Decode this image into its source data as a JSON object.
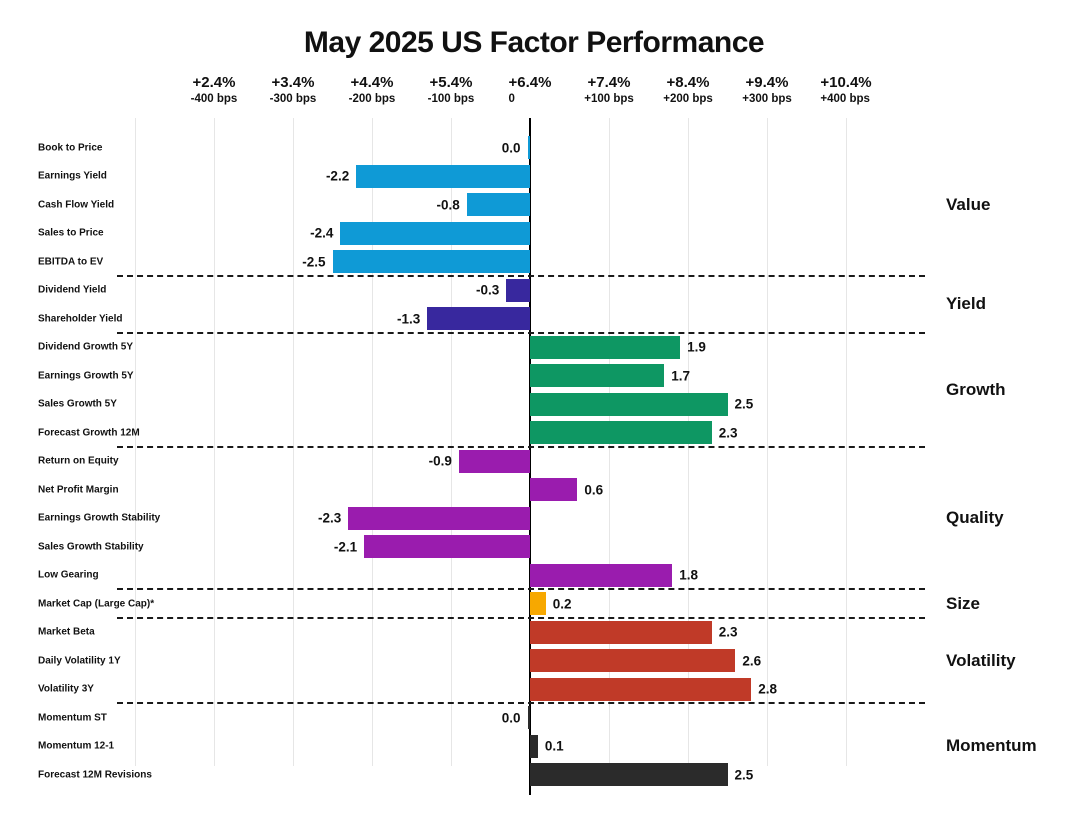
{
  "chart_data": {
    "type": "bar",
    "orientation": "horizontal",
    "title": "May 2025 US Factor Performance",
    "legend_position": "none",
    "grid": true,
    "axis": {
      "xlim": [
        -5,
        5
      ],
      "zero_label": "0",
      "ticks": [
        {
          "pct": "+2.4%",
          "bps": "-400 bps",
          "value": -4
        },
        {
          "pct": "+3.4%",
          "bps": "-300 bps",
          "value": -3
        },
        {
          "pct": "+4.4%",
          "bps": "-200 bps",
          "value": -2
        },
        {
          "pct": "+5.4%",
          "bps": "-100 bps",
          "value": -1
        },
        {
          "pct": "+6.4%",
          "bps": "0",
          "value": 0
        },
        {
          "pct": "+7.4%",
          "bps": "+100 bps",
          "value": 1
        },
        {
          "pct": "+8.4%",
          "bps": "+200 bps",
          "value": 2
        },
        {
          "pct": "+9.4%",
          "bps": "+300 bps",
          "value": 3
        },
        {
          "pct": "+10.4%",
          "bps": "+400 bps",
          "value": 4
        }
      ]
    },
    "groups": [
      {
        "name": "Value",
        "color": "#0F9AD6",
        "factors": [
          {
            "label": "Book to Price",
            "value": 0.0
          },
          {
            "label": "Earnings Yield",
            "value": -2.2
          },
          {
            "label": "Cash Flow Yield",
            "value": -0.8
          },
          {
            "label": "Sales to Price",
            "value": -2.4
          },
          {
            "label": "EBITDA to EV",
            "value": -2.5
          }
        ]
      },
      {
        "name": "Yield",
        "color": "#38289E",
        "factors": [
          {
            "label": "Dividend Yield",
            "value": -0.3
          },
          {
            "label": "Shareholder Yield",
            "value": -1.3
          }
        ]
      },
      {
        "name": "Growth",
        "color": "#0E9763",
        "factors": [
          {
            "label": "Dividend Growth 5Y",
            "value": 1.9
          },
          {
            "label": "Earnings Growth 5Y",
            "value": 1.7
          },
          {
            "label": "Sales Growth 5Y",
            "value": 2.5
          },
          {
            "label": "Forecast Growth 12M",
            "value": 2.3
          }
        ]
      },
      {
        "name": "Quality",
        "color": "#9A1CAE",
        "factors": [
          {
            "label": "Return on Equity",
            "value": -0.9
          },
          {
            "label": "Net Profit Margin",
            "value": 0.6
          },
          {
            "label": "Earnings Growth Stability",
            "value": -2.3
          },
          {
            "label": "Sales Growth Stability",
            "value": -2.1
          },
          {
            "label": "Low Gearing",
            "value": 1.8
          }
        ]
      },
      {
        "name": "Size",
        "color": "#F7A800",
        "factors": [
          {
            "label": "Market Cap (Large Cap)*",
            "value": 0.2
          }
        ]
      },
      {
        "name": "Volatility",
        "color": "#C03A28",
        "factors": [
          {
            "label": "Market Beta",
            "value": 2.3
          },
          {
            "label": "Daily Volatility 1Y",
            "value": 2.6
          },
          {
            "label": "Volatility 3Y",
            "value": 2.8
          }
        ]
      },
      {
        "name": "Momentum",
        "color": "#2B2B2B",
        "factors": [
          {
            "label": "Momentum ST",
            "value": 0.0
          },
          {
            "label": "Momentum 12-1",
            "value": 0.1
          },
          {
            "label": "Forecast 12M Revisions",
            "value": 2.5
          }
        ]
      }
    ]
  }
}
